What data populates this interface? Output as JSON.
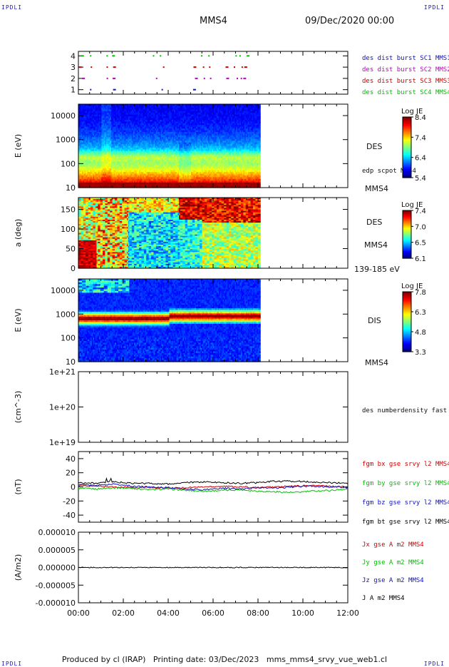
{
  "corners": {
    "tl": "IPDLI",
    "tr": "IPDLI",
    "bl": "IPDLI",
    "br": "IPDLI"
  },
  "header": {
    "spacecraft": "MMS4",
    "date": "09/Dec/2020 00:00"
  },
  "footer": "Produced by cl (IRAP)   Printing date: 03/Dec/2023   mms_mms4_srvy_vue_web1.cl",
  "colors": {
    "mms1": "#1010c0",
    "mms2": "#c000c0",
    "mms3": "#d00000",
    "mms4": "#00c000",
    "bx": "#d00000",
    "by": "#00c000",
    "bz": "#1010c0",
    "bt": "#000000"
  },
  "chart_data": [
    {
      "id": "burst",
      "type": "scatter",
      "y_ticks": [
        "1",
        "2",
        "3",
        "4"
      ],
      "ylim": [
        0.6,
        4.4
      ],
      "series": [
        {
          "name": "des dist burst SC1 MMS1",
          "y": 1,
          "color": "#1010c0"
        },
        {
          "name": "des dist burst SC2 MMS2",
          "y": 2,
          "color": "#c000c0"
        },
        {
          "name": "des dist burst SC3 MMS3",
          "y": 3,
          "color": "#d00000"
        },
        {
          "name": "des dist burst SC4 MMS4",
          "y": 4,
          "color": "#00c000"
        }
      ],
      "burst_times_h": [
        0.1,
        0.55,
        1.2,
        1.5,
        3.4,
        3.7,
        5.1,
        5.5,
        5.8,
        6.5,
        7.0,
        7.2,
        7.4
      ]
    },
    {
      "id": "des_energy",
      "type": "heatmap",
      "ylabel": "E (eV)",
      "yscale": "log",
      "y_ticks": [
        "10",
        "100",
        "1000",
        "10000"
      ],
      "ylim": [
        10,
        30000
      ],
      "data_end_h": 8.1,
      "side_labels": [
        "DES",
        "edp scpot MMS4",
        "MMS4"
      ],
      "colorbar": {
        "title": "Log JE",
        "ticks": [
          "8.4",
          "7.4",
          "6.4",
          "5.4"
        ],
        "range": [
          5.4,
          8.4
        ]
      }
    },
    {
      "id": "des_pitch",
      "type": "heatmap",
      "ylabel": "a (deg)",
      "y_ticks": [
        "0",
        "50",
        "100",
        "150"
      ],
      "ylim": [
        0,
        180
      ],
      "data_end_h": 8.1,
      "side_labels": [
        "DES",
        "MMS4",
        "139-185 eV"
      ],
      "colorbar": {
        "title": "Log JE",
        "ticks": [
          "7.4",
          "7.0",
          "6.5",
          "6.1"
        ],
        "range": [
          6.1,
          7.4
        ]
      }
    },
    {
      "id": "dis_energy",
      "type": "heatmap",
      "ylabel": "E (eV)",
      "yscale": "log",
      "y_ticks": [
        "10",
        "100",
        "1000",
        "10000"
      ],
      "ylim": [
        10,
        30000
      ],
      "data_end_h": 8.1,
      "side_labels": [
        "DIS",
        "MMS4"
      ],
      "colorbar": {
        "title": "Log JE",
        "ticks": [
          "7.8",
          "6.3",
          "4.8",
          "3.3"
        ],
        "range": [
          3.3,
          7.8
        ]
      }
    },
    {
      "id": "density",
      "type": "line",
      "ylabel": "(cm^-3)",
      "yscale": "log",
      "y_ticks": [
        "1e+19",
        "1e+20",
        "1e+21"
      ],
      "side_labels": [
        "des numberdensity fast M"
      ]
    },
    {
      "id": "bfield",
      "type": "line",
      "ylabel": "(nT)",
      "y_ticks": [
        "-40",
        "-20",
        "0",
        "20",
        "40"
      ],
      "ylim": [
        -50,
        50
      ],
      "series": [
        {
          "name": "fgm bx gse srvy l2 MMS4",
          "color": "#d00000",
          "values": [
            2,
            1,
            0,
            -1,
            -1,
            -2,
            -1,
            0,
            1,
            0,
            -1,
            0,
            1,
            2,
            1,
            0
          ]
        },
        {
          "name": "fgm by gse srvy l2 MMS4",
          "color": "#00c000",
          "values": [
            -2,
            -3,
            -1,
            -2,
            -4,
            -3,
            -5,
            -6,
            -5,
            -4,
            -6,
            -7,
            -8,
            -6,
            -5,
            -3
          ]
        },
        {
          "name": "fgm bz gse srvy l2 MMS4",
          "color": "#1010c0",
          "values": [
            3,
            2,
            4,
            1,
            0,
            -1,
            -3,
            -4,
            -2,
            -3,
            -1,
            -2,
            0,
            1,
            0,
            -1
          ]
        },
        {
          "name": "fgm bt gse srvy l2 MMS4",
          "color": "#000000",
          "values": [
            6,
            5,
            7,
            5,
            5,
            4,
            6,
            7,
            6,
            5,
            6,
            8,
            8,
            7,
            6,
            5
          ]
        }
      ]
    },
    {
      "id": "current",
      "type": "line",
      "ylabel": "(A/m2)",
      "y_ticks": [
        "-0.000010",
        "-0.000005",
        "0.000000",
        "0.000005",
        "0.000010"
      ],
      "ylim": [
        -1e-05,
        1e-05
      ],
      "series": [
        {
          "name": "Jx gse A m2 MMS4",
          "color": "#d00000"
        },
        {
          "name": "Jy gse A m2 MMS4",
          "color": "#00c000"
        },
        {
          "name": "Jz gse A m2 MMS4",
          "color": "#1010c0"
        },
        {
          "name": "J A m2 MMS4",
          "color": "#000000"
        }
      ]
    }
  ],
  "x_ticks": [
    "00:00",
    "02:00",
    "04:00",
    "06:00",
    "08:00",
    "10:00",
    "12:00"
  ],
  "xlim_h": [
    0,
    12
  ]
}
